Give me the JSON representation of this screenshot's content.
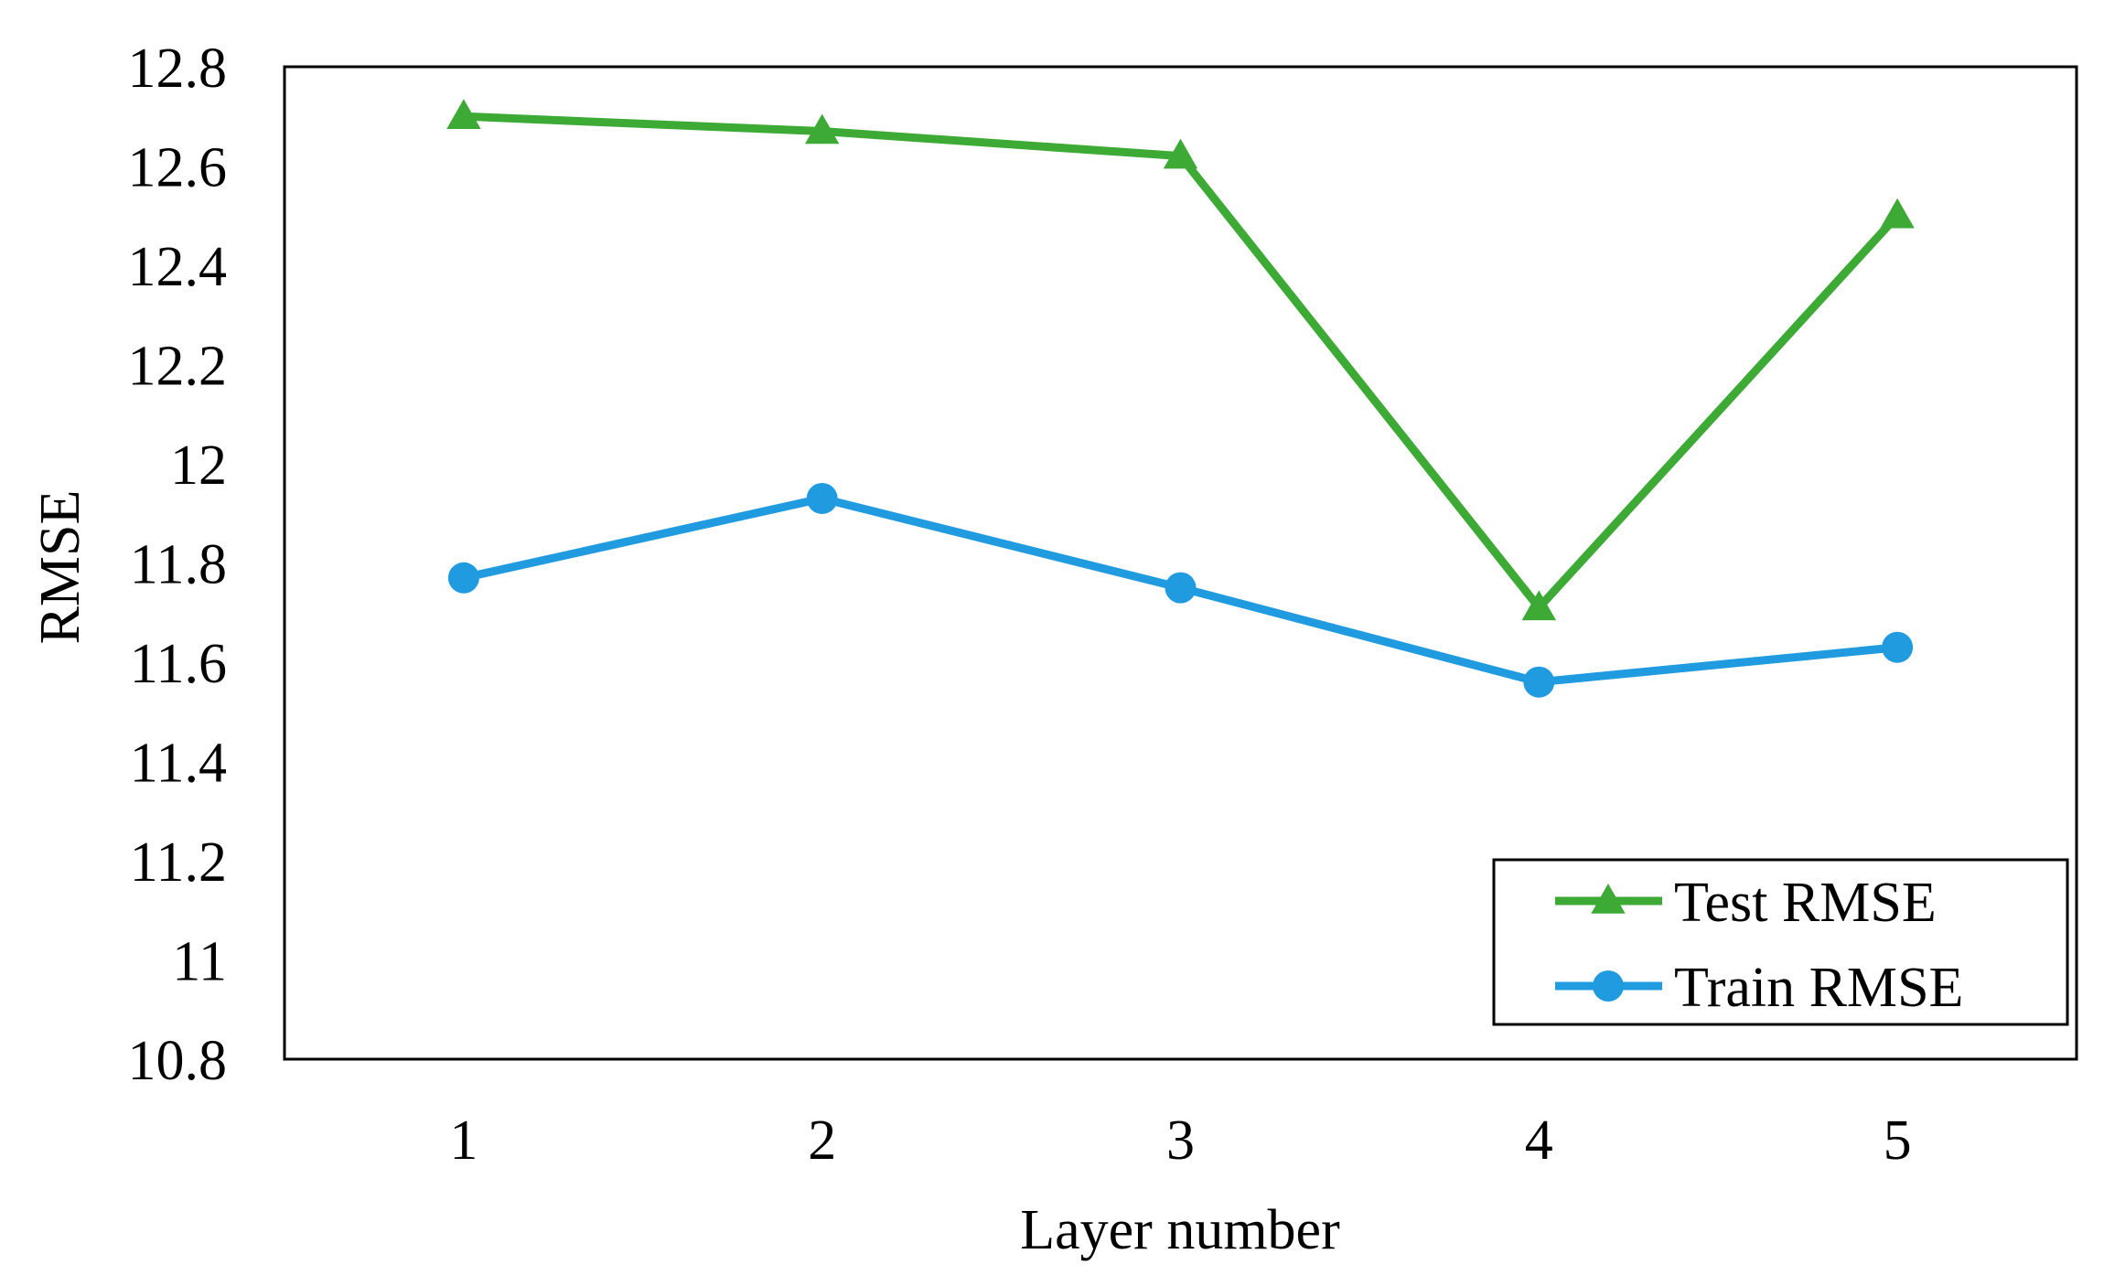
{
  "chart_data": {
    "type": "line",
    "title": "",
    "xlabel": "Layer number",
    "ylabel": "RMSE",
    "categories": [
      "1",
      "2",
      "3",
      "4",
      "5"
    ],
    "y_ticks": [
      "12.8",
      "12.6",
      "12.4",
      "12.2",
      "12",
      "11.8",
      "11.6",
      "11.4",
      "11.2",
      "11",
      "10.8"
    ],
    "ylim": [
      10.8,
      12.8
    ],
    "grid": false,
    "legend_position": "bottom-right",
    "series": [
      {
        "name": "Test RMSE",
        "values": [
          12.7,
          12.67,
          12.62,
          11.71,
          12.5
        ],
        "color": "#3DAA35",
        "marker": "triangle"
      },
      {
        "name": "Train RMSE",
        "values": [
          11.77,
          11.93,
          11.75,
          11.56,
          11.63
        ],
        "color": "#219BE0",
        "marker": "circle"
      }
    ]
  }
}
